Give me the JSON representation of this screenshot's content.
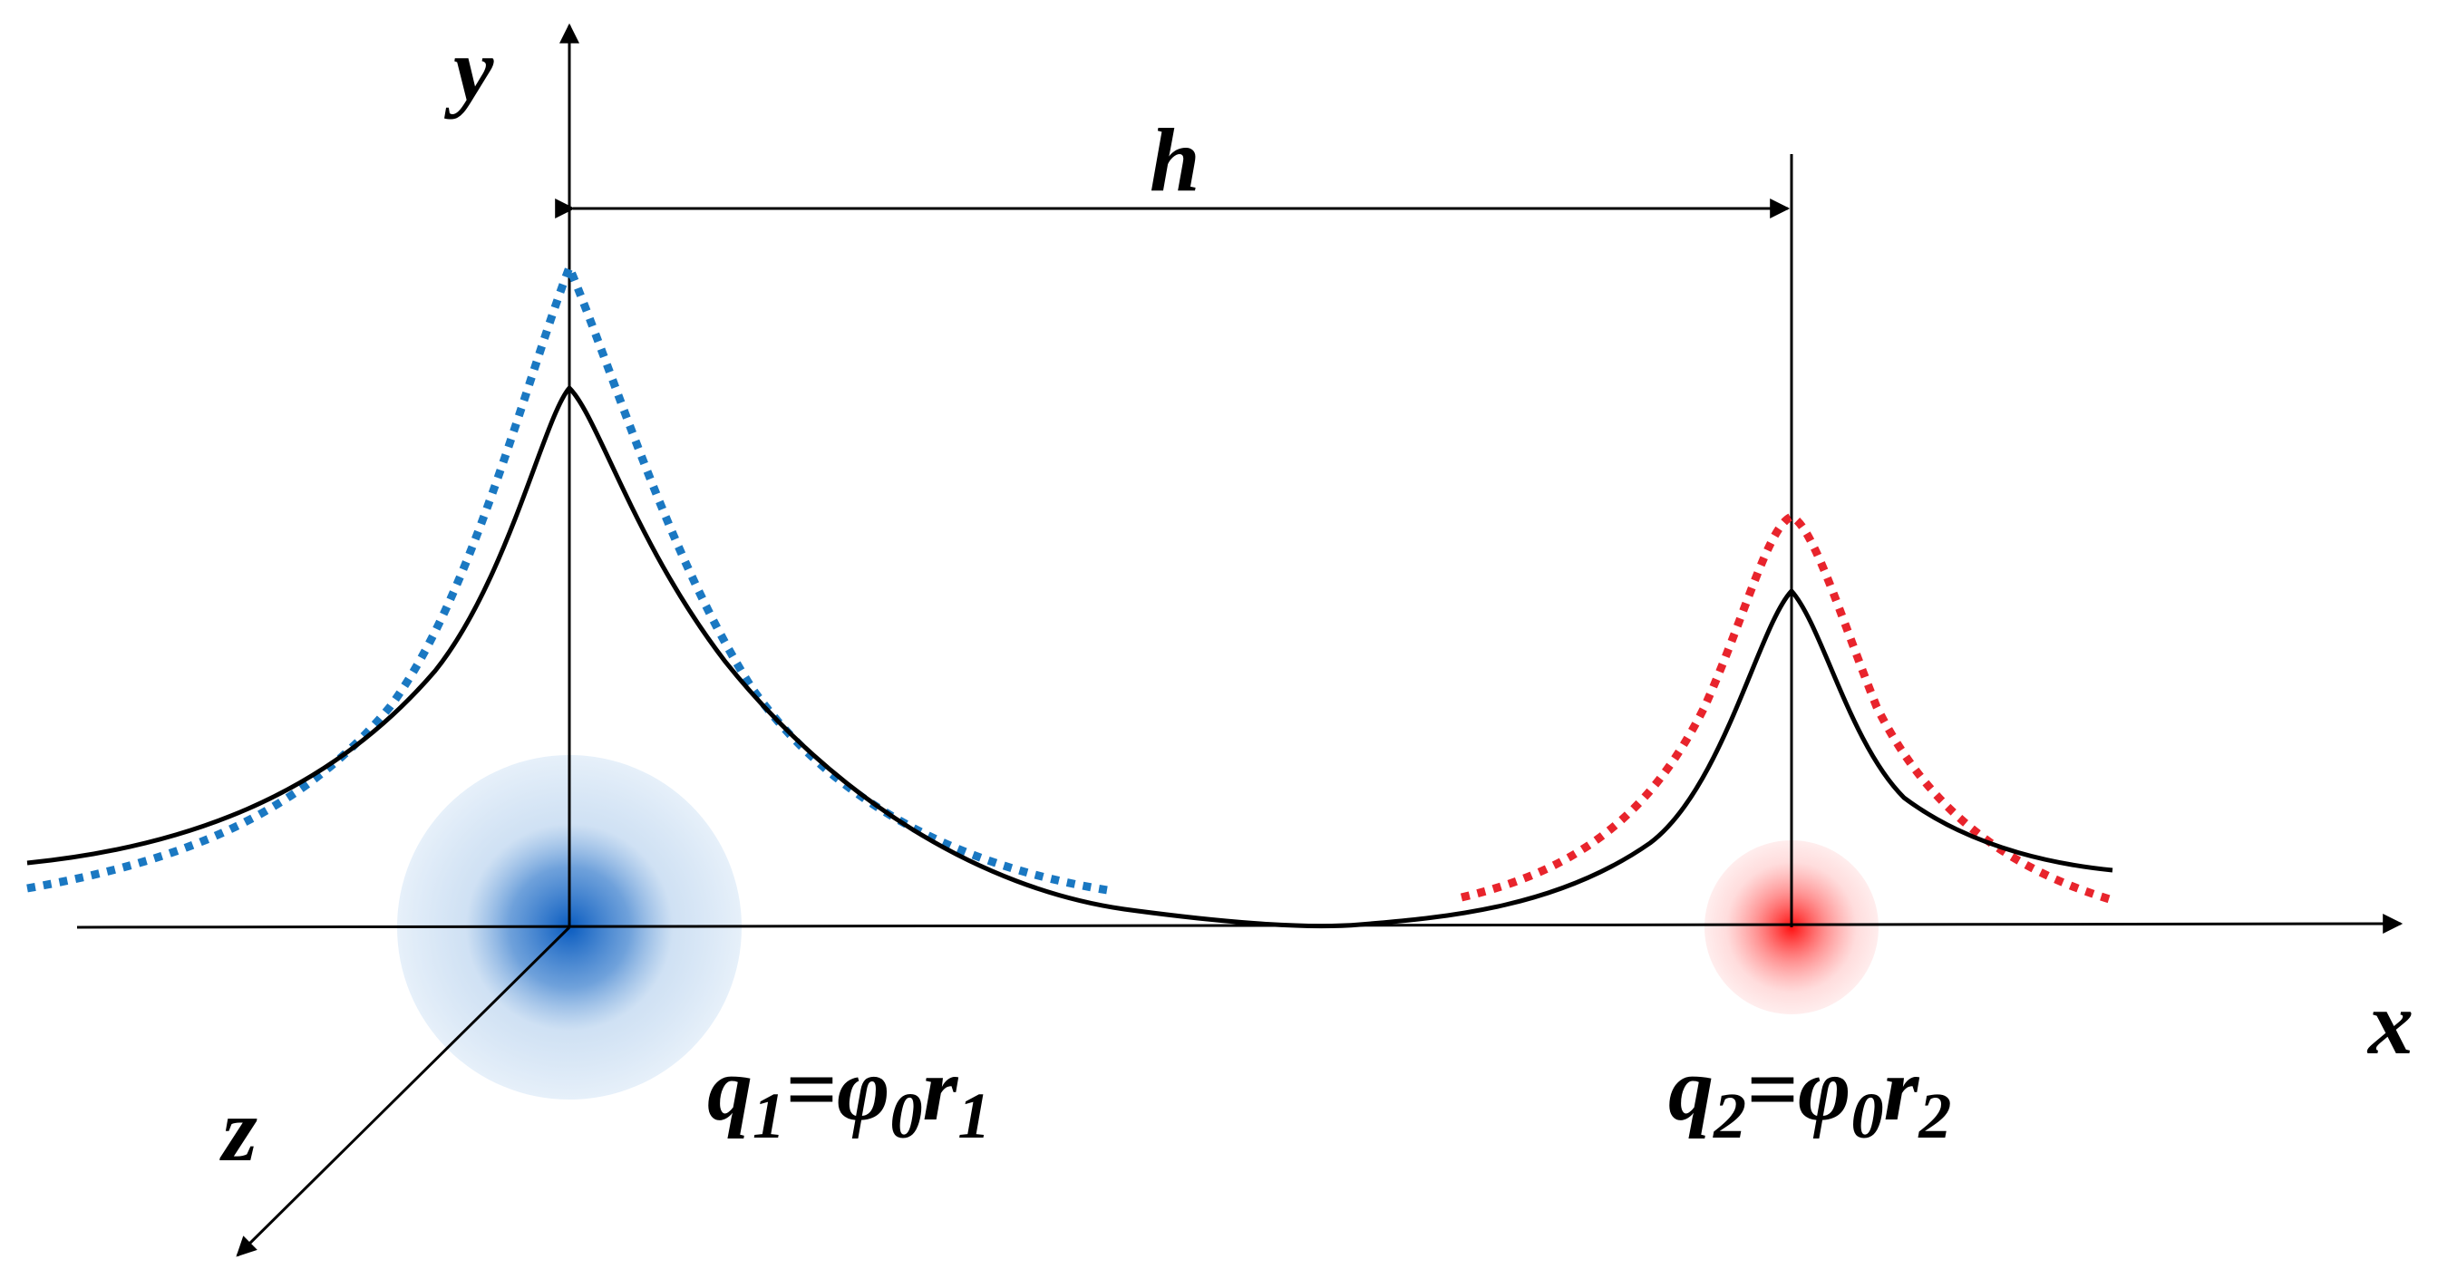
{
  "labels": {
    "axis_y": "y",
    "axis_x": "x",
    "axis_z": "z",
    "distance": "h",
    "charge_1": {
      "q": "q",
      "q_sub": "1",
      "eq": "=",
      "phi": "φ",
      "phi_sub": "0",
      "r": "r",
      "r_sub": "1"
    },
    "charge_2": {
      "q": "q",
      "q_sub": "2",
      "eq": "=",
      "phi": "φ",
      "phi_sub": "0",
      "r": "r",
      "r_sub": "2"
    }
  },
  "colors": {
    "axis": "#000000",
    "potential_curve": "#000000",
    "charge_1_field": "#1f6fc2",
    "charge_1_dotted": "#1a78c2",
    "charge_2_field": "#ff2020",
    "charge_2_dotted": "#e8242c"
  },
  "icons": {
    "charge_1": "blue-charge-sphere",
    "charge_2": "red-charge-sphere"
  }
}
